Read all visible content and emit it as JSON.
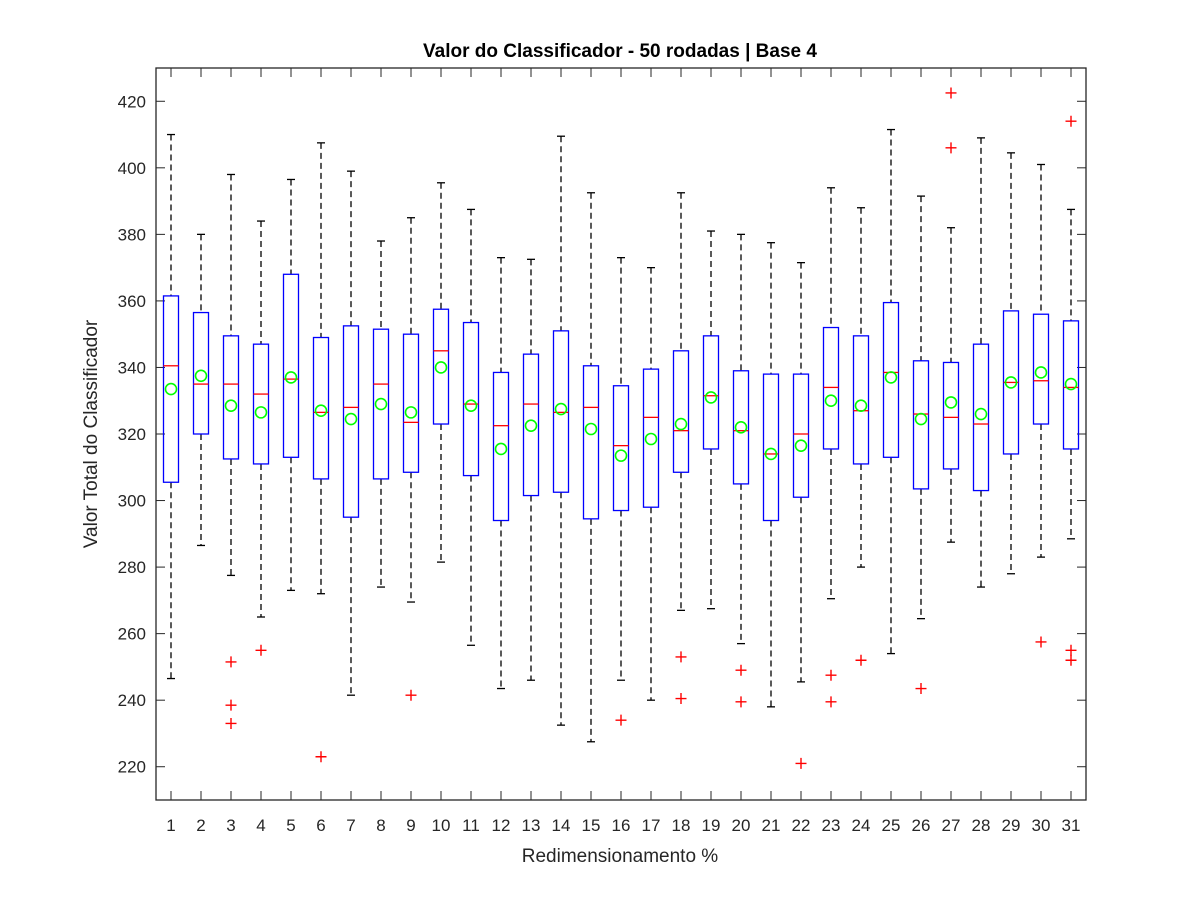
{
  "chart_data": {
    "type": "box",
    "title": "Valor do Classificador - 50 rodadas | Base 4",
    "xlabel": "Redimensionamento %",
    "ylabel": "Valor Total do Classificador",
    "ylim": [
      210,
      430
    ],
    "yticks": [
      220,
      240,
      260,
      280,
      300,
      320,
      340,
      360,
      380,
      400,
      420
    ],
    "categories": [
      "1",
      "2",
      "3",
      "4",
      "5",
      "6",
      "7",
      "8",
      "9",
      "10",
      "11",
      "12",
      "13",
      "14",
      "15",
      "16",
      "17",
      "18",
      "19",
      "20",
      "21",
      "22",
      "23",
      "24",
      "25",
      "26",
      "27",
      "28",
      "29",
      "30",
      "31"
    ],
    "grid": false,
    "legend": "none",
    "colors": {
      "box": "#0000ff",
      "median": "#ff0000",
      "outlier": "#ff0000",
      "mean": "#00ff00",
      "whisker": "#000000",
      "axis": "#262626"
    },
    "boxes": [
      {
        "whisker_low": 246.5,
        "q1": 305.5,
        "median": 340.5,
        "q3": 361.5,
        "whisker_high": 410.0,
        "mean": 333.5,
        "outliers": []
      },
      {
        "whisker_low": 286.5,
        "q1": 320.0,
        "median": 335.0,
        "q3": 356.5,
        "whisker_high": 380.0,
        "mean": 337.5,
        "outliers": []
      },
      {
        "whisker_low": 277.5,
        "q1": 312.5,
        "median": 335.0,
        "q3": 349.5,
        "whisker_high": 398.0,
        "mean": 328.5,
        "outliers": [
          251.5,
          238.5,
          233.0
        ]
      },
      {
        "whisker_low": 265.0,
        "q1": 311.0,
        "median": 332.0,
        "q3": 347.0,
        "whisker_high": 384.0,
        "mean": 326.5,
        "outliers": [
          255.0
        ]
      },
      {
        "whisker_low": 273.0,
        "q1": 313.0,
        "median": 336.5,
        "q3": 368.0,
        "whisker_high": 396.5,
        "mean": 337.0,
        "outliers": []
      },
      {
        "whisker_low": 272.0,
        "q1": 306.5,
        "median": 326.5,
        "q3": 349.0,
        "whisker_high": 407.5,
        "mean": 327.0,
        "outliers": [
          223.0
        ]
      },
      {
        "whisker_low": 241.5,
        "q1": 295.0,
        "median": 328.0,
        "q3": 352.5,
        "whisker_high": 399.0,
        "mean": 324.5,
        "outliers": []
      },
      {
        "whisker_low": 274.0,
        "q1": 306.5,
        "median": 335.0,
        "q3": 351.5,
        "whisker_high": 378.0,
        "mean": 329.0,
        "outliers": []
      },
      {
        "whisker_low": 269.5,
        "q1": 308.5,
        "median": 323.5,
        "q3": 350.0,
        "whisker_high": 385.0,
        "mean": 326.5,
        "outliers": [
          241.5
        ]
      },
      {
        "whisker_low": 281.5,
        "q1": 323.0,
        "median": 345.0,
        "q3": 357.5,
        "whisker_high": 395.5,
        "mean": 340.0,
        "outliers": []
      },
      {
        "whisker_low": 256.5,
        "q1": 307.5,
        "median": 329.0,
        "q3": 353.5,
        "whisker_high": 387.5,
        "mean": 328.5,
        "outliers": []
      },
      {
        "whisker_low": 243.5,
        "q1": 294.0,
        "median": 322.5,
        "q3": 338.5,
        "whisker_high": 373.0,
        "mean": 315.5,
        "outliers": []
      },
      {
        "whisker_low": 246.0,
        "q1": 301.5,
        "median": 329.0,
        "q3": 344.0,
        "whisker_high": 372.5,
        "mean": 322.5,
        "outliers": []
      },
      {
        "whisker_low": 232.5,
        "q1": 302.5,
        "median": 326.5,
        "q3": 351.0,
        "whisker_high": 409.5,
        "mean": 327.5,
        "outliers": []
      },
      {
        "whisker_low": 227.5,
        "q1": 294.5,
        "median": 328.0,
        "q3": 340.5,
        "whisker_high": 392.5,
        "mean": 321.5,
        "outliers": []
      },
      {
        "whisker_low": 246.0,
        "q1": 297.0,
        "median": 316.5,
        "q3": 334.5,
        "whisker_high": 373.0,
        "mean": 313.5,
        "outliers": [
          234.0
        ]
      },
      {
        "whisker_low": 240.0,
        "q1": 298.0,
        "median": 325.0,
        "q3": 339.5,
        "whisker_high": 370.0,
        "mean": 318.5,
        "outliers": []
      },
      {
        "whisker_low": 267.0,
        "q1": 308.5,
        "median": 321.0,
        "q3": 345.0,
        "whisker_high": 392.5,
        "mean": 323.0,
        "outliers": [
          253.0,
          240.5
        ]
      },
      {
        "whisker_low": 267.5,
        "q1": 315.5,
        "median": 331.5,
        "q3": 349.5,
        "whisker_high": 381.0,
        "mean": 331.0,
        "outliers": []
      },
      {
        "whisker_low": 257.0,
        "q1": 305.0,
        "median": 321.0,
        "q3": 339.0,
        "whisker_high": 380.0,
        "mean": 322.0,
        "outliers": [
          249.0,
          239.5
        ]
      },
      {
        "whisker_low": 238.0,
        "q1": 294.0,
        "median": 314.0,
        "q3": 338.0,
        "whisker_high": 377.5,
        "mean": 314.0,
        "outliers": []
      },
      {
        "whisker_low": 245.5,
        "q1": 301.0,
        "median": 320.0,
        "q3": 338.0,
        "whisker_high": 371.5,
        "mean": 316.5,
        "outliers": [
          221.0
        ]
      },
      {
        "whisker_low": 270.5,
        "q1": 315.5,
        "median": 334.0,
        "q3": 352.0,
        "whisker_high": 394.0,
        "mean": 330.0,
        "outliers": [
          247.5,
          239.5
        ]
      },
      {
        "whisker_low": 280.0,
        "q1": 311.0,
        "median": 327.0,
        "q3": 349.5,
        "whisker_high": 388.0,
        "mean": 328.5,
        "outliers": [
          252.0
        ]
      },
      {
        "whisker_low": 254.0,
        "q1": 313.0,
        "median": 338.5,
        "q3": 359.5,
        "whisker_high": 411.5,
        "mean": 337.0,
        "outliers": []
      },
      {
        "whisker_low": 264.5,
        "q1": 303.5,
        "median": 326.0,
        "q3": 342.0,
        "whisker_high": 391.5,
        "mean": 324.5,
        "outliers": [
          243.5
        ]
      },
      {
        "whisker_low": 287.5,
        "q1": 309.5,
        "median": 325.0,
        "q3": 341.5,
        "whisker_high": 382.0,
        "mean": 329.5,
        "outliers": [
          422.5,
          406.0
        ]
      },
      {
        "whisker_low": 274.0,
        "q1": 303.0,
        "median": 323.0,
        "q3": 347.0,
        "whisker_high": 409.0,
        "mean": 326.0,
        "outliers": []
      },
      {
        "whisker_low": 278.0,
        "q1": 314.0,
        "median": 335.5,
        "q3": 357.0,
        "whisker_high": 404.5,
        "mean": 335.5,
        "outliers": []
      },
      {
        "whisker_low": 283.0,
        "q1": 323.0,
        "median": 336.0,
        "q3": 356.0,
        "whisker_high": 401.0,
        "mean": 338.5,
        "outliers": [
          257.5
        ]
      },
      {
        "whisker_low": 288.5,
        "q1": 315.5,
        "median": 334.0,
        "q3": 354.0,
        "whisker_high": 387.5,
        "mean": 335.0,
        "outliers": [
          414.0,
          255.0,
          252.0
        ]
      }
    ]
  }
}
